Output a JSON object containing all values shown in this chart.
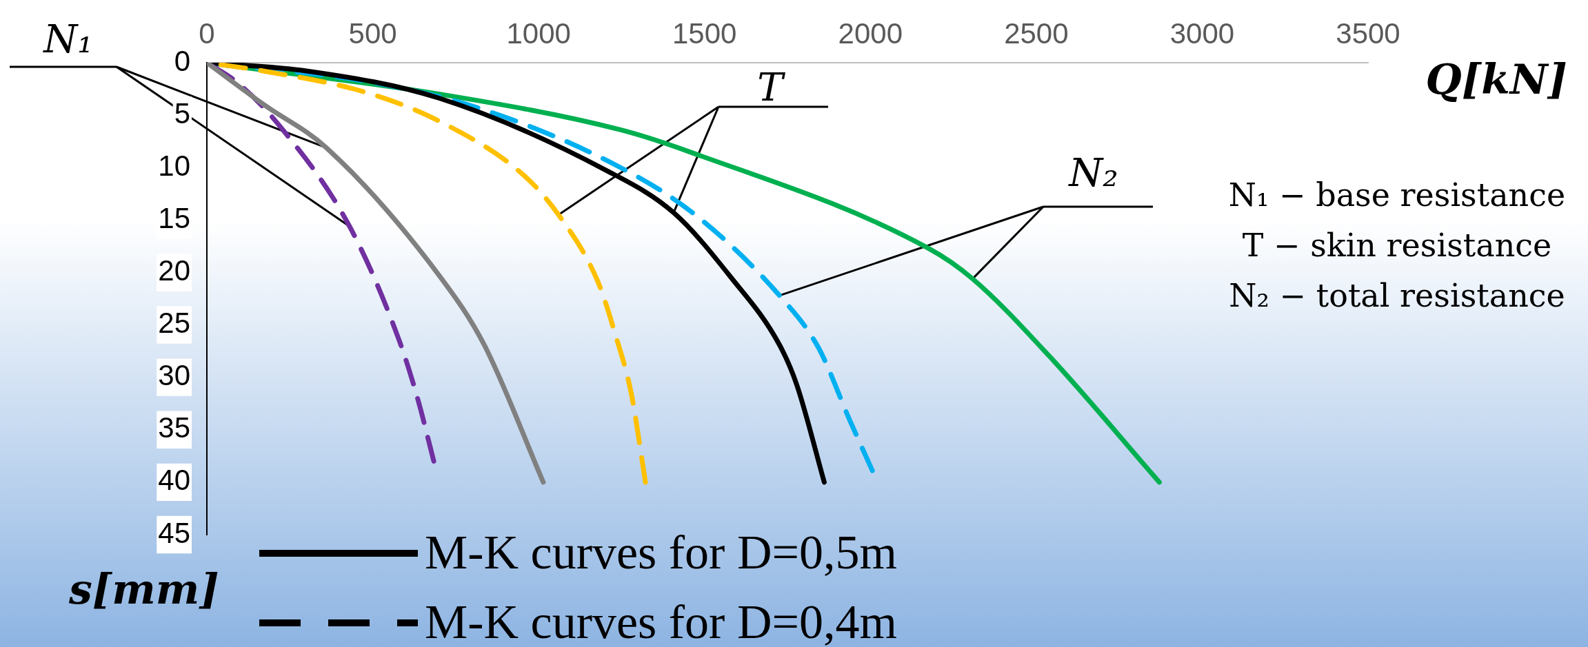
{
  "chart_data": {
    "type": "line",
    "xlabel": "Q[kN]",
    "ylabel": "s[mm]",
    "xlim": [
      0,
      3500
    ],
    "xticks": [
      0,
      500,
      1000,
      1500,
      2000,
      2500,
      3000,
      3500
    ],
    "ylim": [
      45,
      0
    ],
    "yticks": [
      0,
      5,
      10,
      15,
      20,
      25,
      30,
      35,
      40,
      45
    ],
    "grid": false,
    "legend": false,
    "marker": "none",
    "series": [
      {
        "color": "#808080",
        "line_style": "solid",
        "x": [
          0,
          172,
          360,
          703,
          836,
          1014
        ],
        "values": [
          0,
          4,
          8.1,
          20.4,
          26.9,
          40
        ]
      },
      {
        "color": "#7030a0",
        "line_style": "dashed",
        "x": [
          0,
          92,
          224,
          430,
          580,
          636,
          684
        ],
        "values": [
          0,
          1.9,
          6.2,
          15.6,
          26.5,
          32.1,
          38
        ]
      },
      {
        "color": "#ffc000",
        "line_style": "dashed",
        "x": [
          0,
          172,
          476,
          702,
          954,
          1060,
          1179,
          1232,
          1279,
          1322
        ],
        "values": [
          0,
          0.8,
          2.8,
          5.6,
          10.7,
          14.5,
          20.9,
          26,
          31.5,
          40
        ]
      },
      {
        "color": "#000000",
        "line_style": "solid",
        "x": [
          0,
          304,
          702,
          1206,
          1407,
          1578,
          1726,
          1778,
          1861
        ],
        "values": [
          0,
          0.8,
          3.4,
          10.3,
          14.3,
          20.4,
          26.9,
          30.7,
          40
        ]
      },
      {
        "color": "#00b0f0",
        "line_style": "dashed",
        "x": [
          0,
          503,
          836,
          1247,
          1472,
          1726,
          1844,
          1938,
          2006
        ],
        "values": [
          0,
          1.9,
          4.5,
          10,
          14.5,
          22.2,
          27.2,
          34.1,
          38.9
        ]
      },
      {
        "color": "#00b050",
        "line_style": "solid",
        "x": [
          0,
          702,
          1247,
          1455,
          2175,
          2308,
          2540,
          2871
        ],
        "values": [
          0,
          3,
          6.4,
          8.5,
          17.7,
          20.6,
          28,
          40
        ]
      }
    ],
    "annotations": [
      {
        "text": "N₁",
        "x": 360,
        "y": 8.1
      },
      {
        "text": "T",
        "x": 1060,
        "y": 14.5
      },
      {
        "text": "N₂",
        "x": 1726,
        "y": 22.2
      },
      "N₁ − base resistance",
      "T − skin resistance",
      "N₂ − total resistance",
      "M-K curves for D=0,5m",
      "M-K curves for D=0,4m"
    ]
  }
}
